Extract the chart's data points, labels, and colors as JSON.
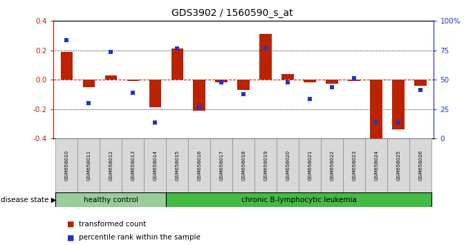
{
  "title": "GDS3902 / 1560590_s_at",
  "samples": [
    "GSM658010",
    "GSM658011",
    "GSM658012",
    "GSM658013",
    "GSM658014",
    "GSM658015",
    "GSM658016",
    "GSM658017",
    "GSM658018",
    "GSM658019",
    "GSM658020",
    "GSM658021",
    "GSM658022",
    "GSM658023",
    "GSM658024",
    "GSM658025",
    "GSM658026"
  ],
  "red_values": [
    0.19,
    -0.05,
    0.03,
    -0.01,
    -0.19,
    0.21,
    -0.21,
    -0.02,
    -0.07,
    0.31,
    0.04,
    -0.02,
    -0.03,
    -0.01,
    -0.42,
    -0.34,
    -0.04
  ],
  "blue_values": [
    0.27,
    -0.16,
    0.19,
    -0.09,
    -0.29,
    0.21,
    -0.19,
    -0.02,
    -0.1,
    0.21,
    -0.02,
    -0.13,
    -0.05,
    0.01,
    -0.29,
    -0.29,
    -0.07
  ],
  "healthy_count": 5,
  "healthy_label": "healthy control",
  "disease_label": "chronic B-lymphocytic leukemia",
  "disease_state_label": "disease state",
  "legend_red": "transformed count",
  "legend_blue": "percentile rank within the sample",
  "ylim": [
    -0.4,
    0.4
  ],
  "yticks_left": [
    -0.4,
    -0.2,
    0.0,
    0.2,
    0.4
  ],
  "bar_color": "#bb2200",
  "dot_color": "#2233cc",
  "healthy_bg": "#99cc99",
  "disease_bg": "#44bb44",
  "bg_color": "#ffffff",
  "bar_width": 0.55
}
